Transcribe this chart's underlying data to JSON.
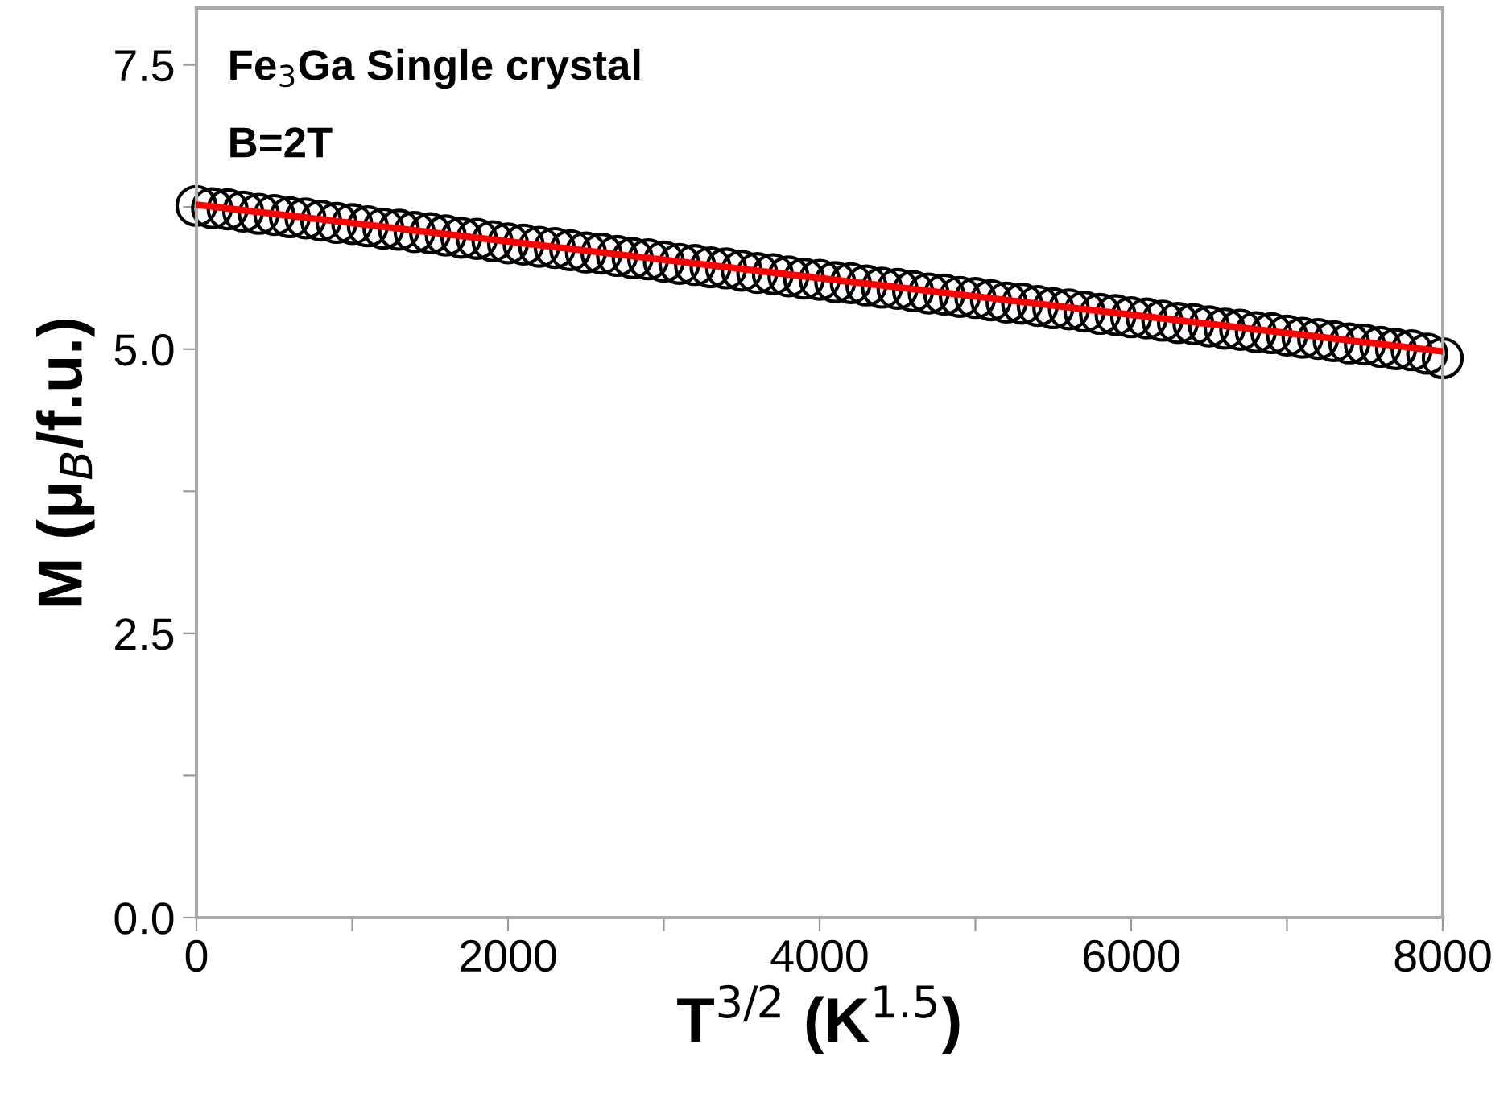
{
  "chart_data": {
    "type": "scatter",
    "xlabel": "T$^{3/2}$ (K$^{1.5}$)",
    "ylabel": "M (μ$_{B}$/f.u.)",
    "annotations": [
      "Fe$_{3}$Ga Single crystal",
      "B=2T"
    ],
    "xlim": [
      0,
      8000
    ],
    "ylim": [
      0,
      8
    ],
    "xticks": [
      0,
      {
        "value": 1000,
        "label": null
      },
      2000,
      {
        "value": 3000,
        "label": null
      },
      4000,
      {
        "value": 5000,
        "label": null
      },
      6000,
      {
        "value": 7000,
        "label": null
      },
      8000
    ],
    "yticks": [
      {
        "value": 0,
        "label": "0.0"
      },
      {
        "value": 1.25,
        "label": null
      },
      {
        "value": 2.5,
        "label": "2.5"
      },
      {
        "value": 3.75,
        "label": null
      },
      {
        "value": 5,
        "label": "5.0"
      },
      {
        "value": 6.25,
        "label": null
      },
      {
        "value": 7.5,
        "label": "7.5"
      }
    ],
    "grid": false,
    "legend": false,
    "series": [
      {
        "color": "#000000",
        "marker": "circle",
        "x": [
          0,
          100,
          200,
          300,
          400,
          500,
          600,
          700,
          800,
          900,
          1000,
          1100,
          1200,
          1300,
          1400,
          1500,
          1600,
          1700,
          1800,
          1900,
          2000,
          2100,
          2200,
          2300,
          2400,
          2500,
          2600,
          2700,
          2800,
          2900,
          3000,
          3100,
          3200,
          3300,
          3400,
          3500,
          3600,
          3700,
          3800,
          3900,
          4000,
          4100,
          4200,
          4300,
          4400,
          4500,
          4600,
          4700,
          4800,
          4900,
          5000,
          5100,
          5200,
          5300,
          5400,
          5500,
          5600,
          5700,
          5800,
          5900,
          6000,
          6100,
          6200,
          6300,
          6400,
          6500,
          6600,
          6700,
          6800,
          6900,
          7000,
          7100,
          7200,
          7300,
          7400,
          7500,
          7600,
          7700,
          7800,
          7900,
          8000
        ],
        "values": [
          6.26,
          6.24,
          6.23,
          6.21,
          6.19,
          6.18,
          6.16,
          6.15,
          6.13,
          6.11,
          6.1,
          6.08,
          6.06,
          6.05,
          6.03,
          6.02,
          6.0,
          5.98,
          5.97,
          5.95,
          5.93,
          5.92,
          5.9,
          5.89,
          5.87,
          5.85,
          5.84,
          5.82,
          5.8,
          5.79,
          5.77,
          5.75,
          5.74,
          5.72,
          5.71,
          5.69,
          5.67,
          5.66,
          5.64,
          5.62,
          5.61,
          5.59,
          5.58,
          5.56,
          5.54,
          5.53,
          5.51,
          5.49,
          5.48,
          5.46,
          5.45,
          5.43,
          5.41,
          5.4,
          5.38,
          5.36,
          5.35,
          5.33,
          5.31,
          5.3,
          5.28,
          5.27,
          5.25,
          5.23,
          5.22,
          5.2,
          5.18,
          5.17,
          5.15,
          5.14,
          5.12,
          5.1,
          5.09,
          5.07,
          5.05,
          5.04,
          5.02,
          5.0,
          4.99,
          4.96,
          4.92
        ]
      },
      {
        "type": "line",
        "color": "#ff0000",
        "line_style": "solid",
        "x": [
          0,
          8000
        ],
        "values": [
          6.27,
          4.98
        ]
      }
    ]
  }
}
